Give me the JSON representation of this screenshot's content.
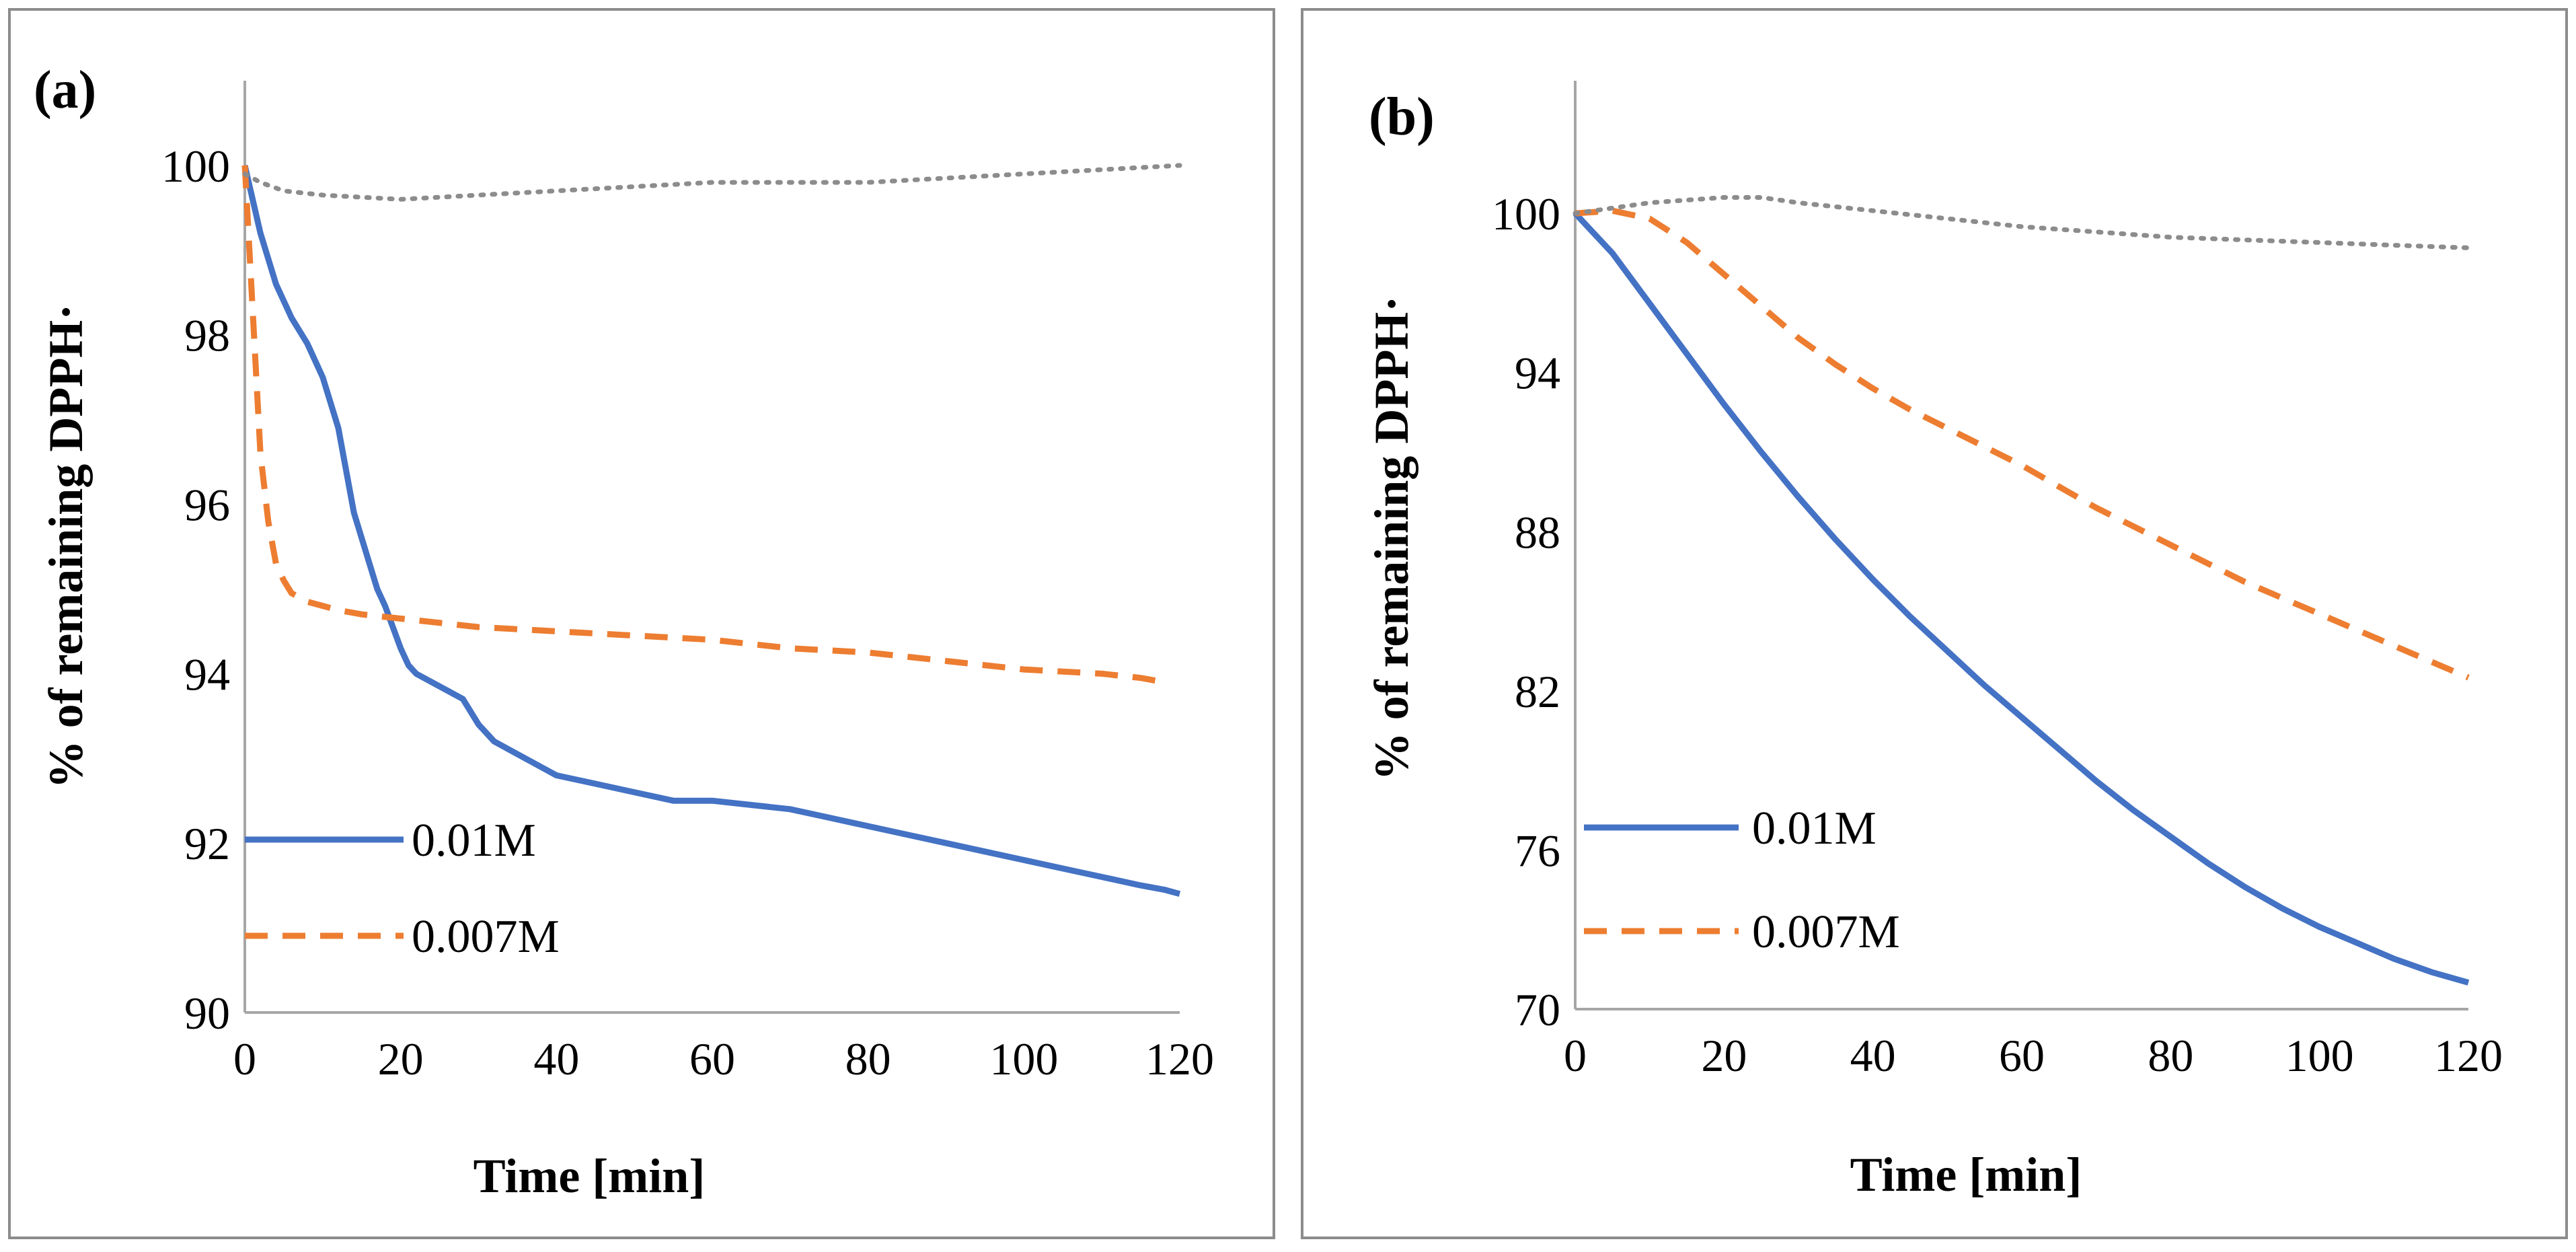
{
  "chart_data": [
    {
      "type": "line",
      "panel_label": "(a)",
      "xlabel": "Time [min]",
      "ylabel": "% of remaining DPPH·",
      "xlim": [
        0,
        120
      ],
      "ylim": [
        90,
        101
      ],
      "x_ticks": [
        0,
        20,
        40,
        60,
        80,
        100,
        120
      ],
      "x_tick_labels": [
        "0",
        "20",
        "40",
        "60",
        "80",
        "100",
        "120"
      ],
      "y_ticks": [
        90,
        92,
        94,
        96,
        98,
        100
      ],
      "y_tick_labels": [
        "90",
        "92",
        "94",
        "96",
        "98",
        "100"
      ],
      "legend_position": "bottom-left",
      "series": [
        {
          "name": "0.01M",
          "style": "solid",
          "color": "#4472c4",
          "in_legend": true,
          "x": [
            0,
            2,
            4,
            6,
            8,
            10,
            12,
            14,
            16,
            17,
            18,
            20,
            21,
            22,
            24,
            26,
            28,
            30,
            32,
            34,
            36,
            38,
            40,
            45,
            50,
            55,
            60,
            65,
            70,
            75,
            80,
            85,
            90,
            95,
            100,
            105,
            110,
            115,
            118,
            120
          ],
          "values": [
            100,
            99.2,
            98.6,
            98.2,
            97.9,
            97.5,
            96.9,
            95.9,
            95.3,
            95.0,
            94.8,
            94.3,
            94.1,
            94.0,
            93.9,
            93.8,
            93.7,
            93.4,
            93.2,
            93.1,
            93.0,
            92.9,
            92.8,
            92.7,
            92.6,
            92.5,
            92.5,
            92.45,
            92.4,
            92.3,
            92.2,
            92.1,
            92.0,
            91.9,
            91.8,
            91.7,
            91.6,
            91.5,
            91.45,
            91.4
          ]
        },
        {
          "name": "0.007M",
          "style": "dashed",
          "color": "#ed7d31",
          "in_legend": true,
          "x": [
            0,
            1,
            2,
            3,
            4,
            5,
            6,
            8,
            10,
            12,
            15,
            20,
            25,
            30,
            40,
            50,
            60,
            70,
            80,
            90,
            100,
            110,
            115,
            118
          ],
          "values": [
            100,
            98.3,
            96.6,
            95.8,
            95.3,
            95.1,
            94.95,
            94.85,
            94.8,
            94.75,
            94.7,
            94.65,
            94.6,
            94.55,
            94.5,
            94.45,
            94.4,
            94.3,
            94.25,
            94.15,
            94.05,
            94.0,
            93.95,
            93.9
          ]
        },
        {
          "name": "",
          "style": "dotted",
          "color": "#8c8c8c",
          "in_legend": false,
          "x": [
            0,
            2,
            5,
            10,
            20,
            30,
            40,
            50,
            60,
            70,
            80,
            90,
            100,
            110,
            120
          ],
          "values": [
            99.9,
            99.8,
            99.7,
            99.65,
            99.6,
            99.65,
            99.7,
            99.75,
            99.8,
            99.8,
            99.8,
            99.85,
            99.9,
            99.95,
            100
          ]
        }
      ]
    },
    {
      "type": "line",
      "panel_label": "(b)",
      "xlabel": "Time [min]",
      "ylabel": "% of remaining DPPH·",
      "xlim": [
        0,
        120
      ],
      "ylim": [
        70,
        105
      ],
      "x_ticks": [
        0,
        20,
        40,
        60,
        80,
        100,
        120
      ],
      "x_tick_labels": [
        "0",
        "20",
        "40",
        "60",
        "80",
        "100",
        "120"
      ],
      "y_ticks": [
        70,
        76,
        82,
        88,
        94,
        100
      ],
      "y_tick_labels": [
        "70",
        "76",
        "82",
        "88",
        "94",
        "100"
      ],
      "legend_position": "bottom-left",
      "series": [
        {
          "name": "0.01M",
          "style": "solid",
          "color": "#4472c4",
          "in_legend": true,
          "x": [
            0,
            5,
            10,
            15,
            20,
            25,
            30,
            35,
            40,
            45,
            50,
            55,
            60,
            65,
            70,
            75,
            80,
            85,
            90,
            95,
            100,
            105,
            110,
            115,
            120
          ],
          "values": [
            100,
            98.5,
            96.6,
            94.7,
            92.8,
            91.0,
            89.3,
            87.7,
            86.2,
            84.8,
            83.5,
            82.2,
            81.0,
            79.8,
            78.6,
            77.5,
            76.5,
            75.5,
            74.6,
            73.8,
            73.1,
            72.5,
            71.9,
            71.4,
            71.0
          ]
        },
        {
          "name": "0.007M",
          "style": "dashed",
          "color": "#ed7d31",
          "in_legend": true,
          "x": [
            0,
            5,
            10,
            15,
            20,
            25,
            30,
            35,
            40,
            45,
            50,
            55,
            60,
            65,
            70,
            75,
            80,
            85,
            90,
            95,
            100,
            105,
            110,
            115,
            120
          ],
          "values": [
            100,
            100.1,
            99.8,
            98.9,
            97.7,
            96.5,
            95.3,
            94.3,
            93.4,
            92.6,
            91.9,
            91.2,
            90.5,
            89.7,
            88.9,
            88.2,
            87.5,
            86.8,
            86.1,
            85.5,
            84.9,
            84.3,
            83.7,
            83.1,
            82.5
          ]
        },
        {
          "name": "",
          "style": "dotted",
          "color": "#8c8c8c",
          "in_legend": false,
          "x": [
            0,
            5,
            10,
            15,
            20,
            25,
            30,
            40,
            50,
            60,
            70,
            80,
            90,
            100,
            110,
            120
          ],
          "values": [
            100,
            100.2,
            100.4,
            100.5,
            100.6,
            100.6,
            100.4,
            100.1,
            99.8,
            99.5,
            99.3,
            99.1,
            99.0,
            98.9,
            98.8,
            98.7
          ]
        }
      ]
    }
  ]
}
